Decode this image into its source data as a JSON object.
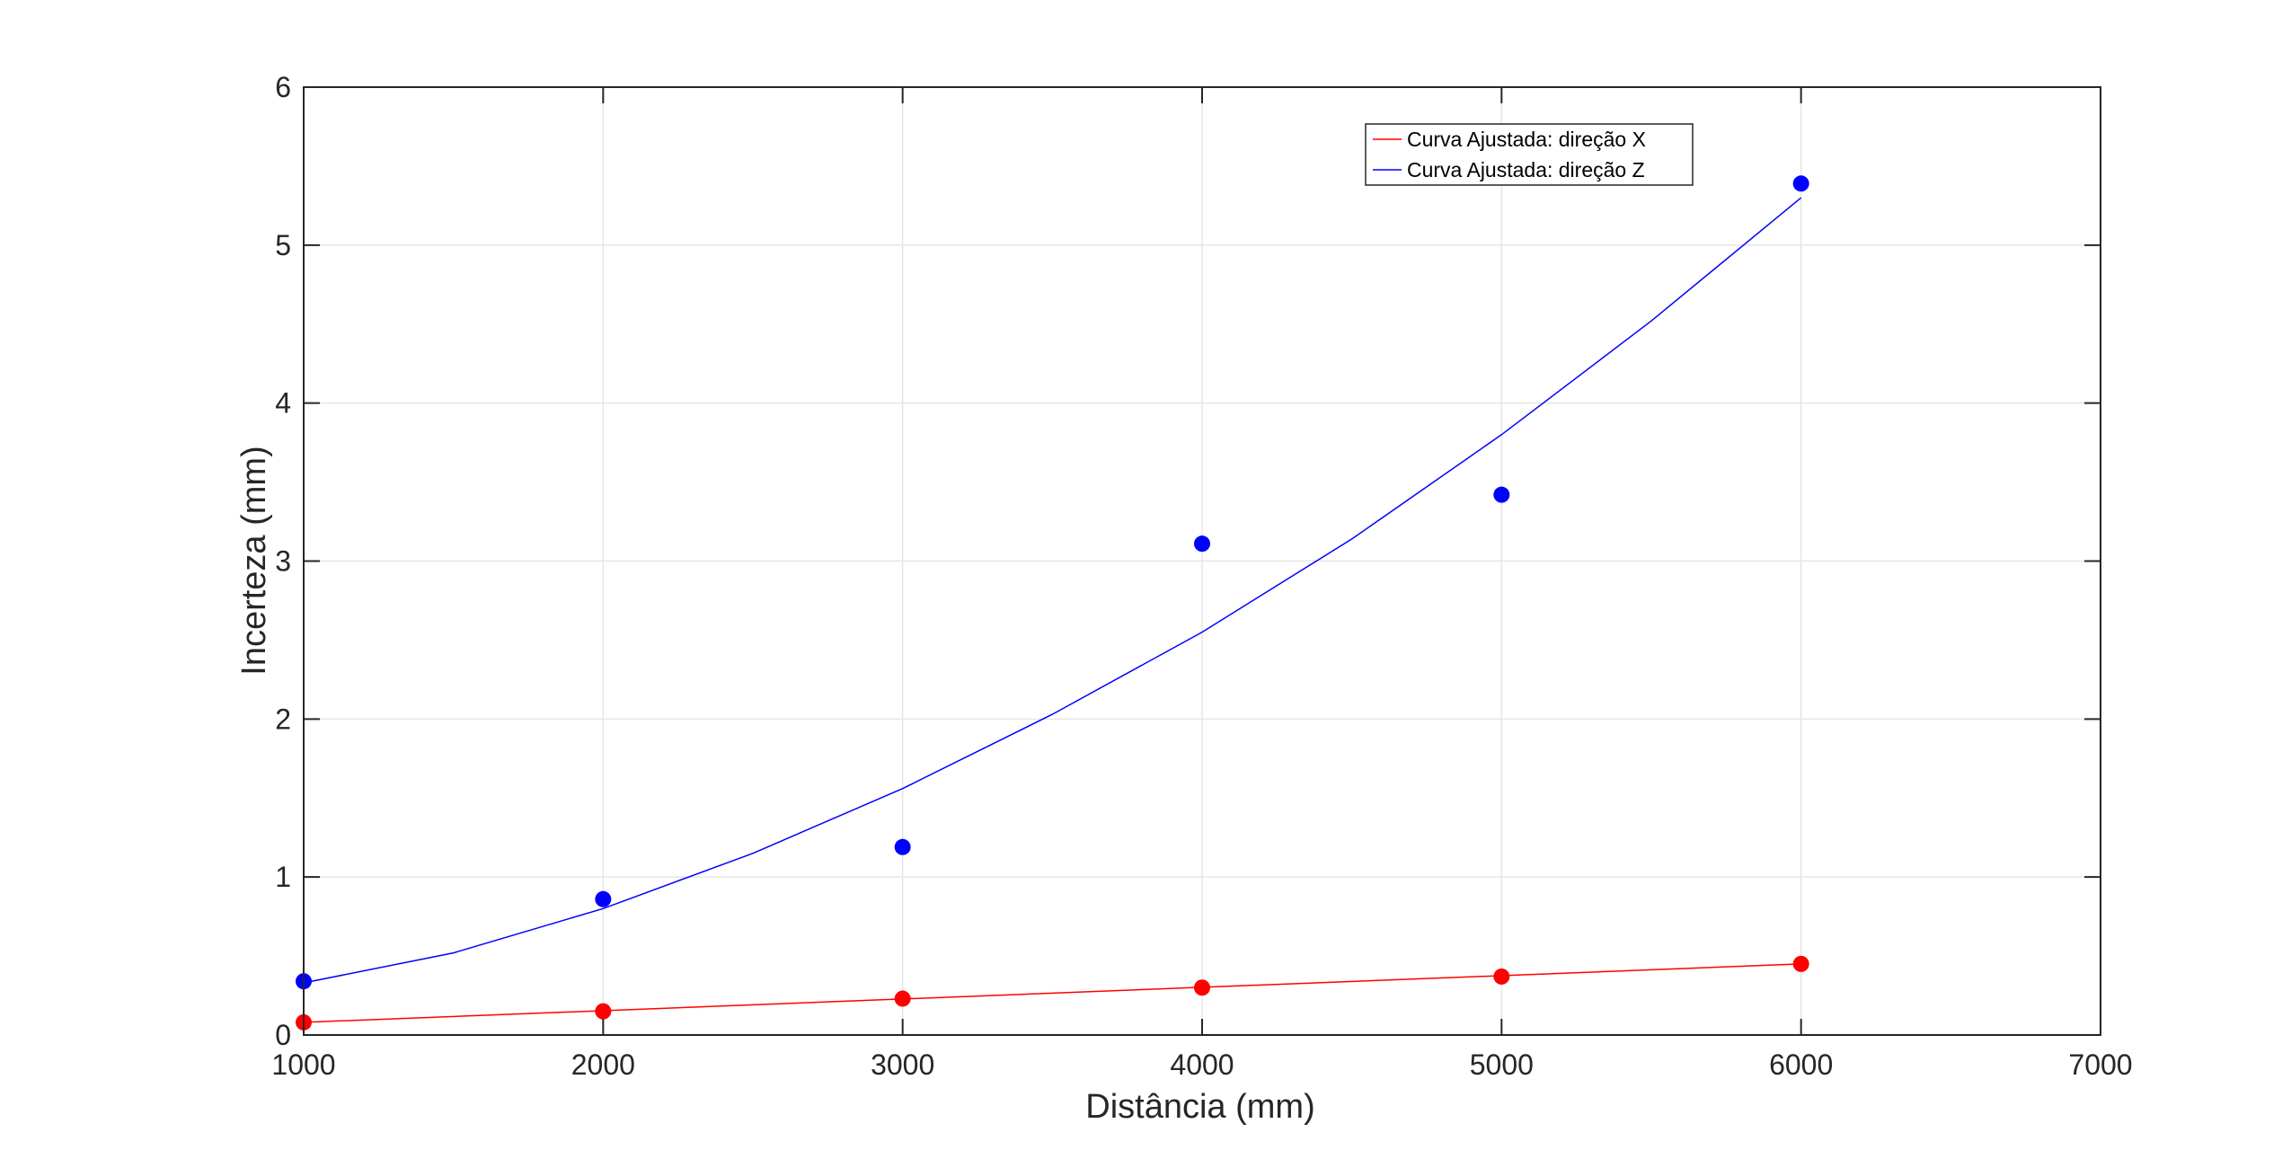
{
  "chart_data": {
    "type": "scatter",
    "title": "",
    "xlabel": "Distância (mm)",
    "ylabel": "Incerteza (mm)",
    "xlim": [
      1000,
      7000
    ],
    "ylim": [
      0,
      6
    ],
    "xticks": [
      "1000",
      "2000",
      "3000",
      "4000",
      "5000",
      "6000",
      "7000"
    ],
    "yticks": [
      "0",
      "1",
      "2",
      "3",
      "4",
      "5",
      "6"
    ],
    "grid": true,
    "legend_position": "top-right",
    "series": [
      {
        "name": "Curva Ajustada: direção X",
        "color": "#ff0000",
        "points": {
          "x": [
            1000,
            2000,
            3000,
            4000,
            5000,
            6000
          ],
          "y": [
            0.08,
            0.15,
            0.23,
            0.3,
            0.37,
            0.45
          ]
        },
        "fit": {
          "x": [
            1000,
            6000
          ],
          "y": [
            0.08,
            0.45
          ]
        }
      },
      {
        "name": "Curva Ajustada: direção Z",
        "color": "#0000ff",
        "points": {
          "x": [
            1000,
            2000,
            3000,
            4000,
            5000,
            6000
          ],
          "y": [
            0.34,
            0.86,
            1.19,
            3.11,
            3.42,
            5.39
          ]
        },
        "fit": {
          "x": [
            1000,
            1500,
            2000,
            2500,
            3000,
            3500,
            4000,
            4500,
            5000,
            5500,
            6000
          ],
          "y": [
            0.33,
            0.52,
            0.8,
            1.15,
            1.56,
            2.03,
            2.55,
            3.14,
            3.8,
            4.52,
            5.3
          ]
        }
      }
    ]
  }
}
